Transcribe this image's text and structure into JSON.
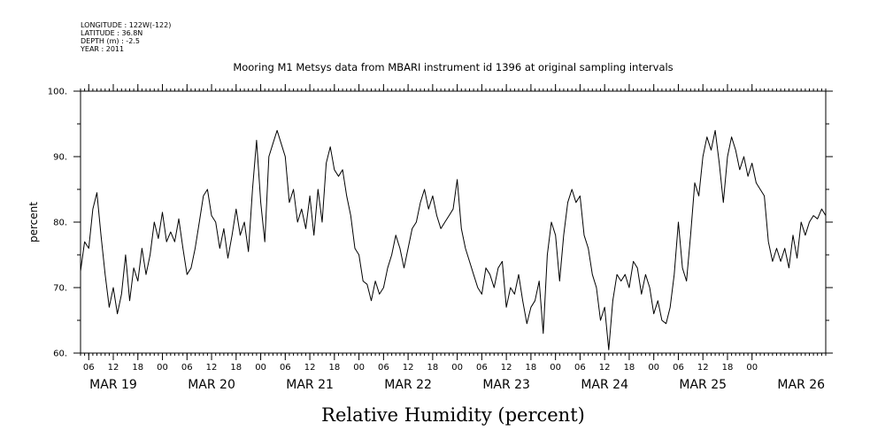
{
  "header": {
    "meta_lines": [
      "LONGITUDE : 122W(-122)",
      "LATITUDE : 36.8N",
      "DEPTH (m) : -2.5",
      "YEAR : 2011"
    ]
  },
  "chart_data": {
    "type": "line",
    "title": "Mooring M1 Metsys data from MBARI instrument id 1396 at original sampling intervals",
    "xlabel": "Relative Humidity (percent)",
    "ylabel": "percent",
    "ylim": [
      60,
      100
    ],
    "yticks": [
      "60.",
      "70.",
      "80.",
      "90.",
      "100."
    ],
    "xlim": [
      "2011-03-19T04:00",
      "2011-03-26T18:00"
    ],
    "hour_ticks": [
      "06",
      "12",
      "18",
      "00",
      "06",
      "12",
      "18",
      "00",
      "06",
      "12",
      "18",
      "00",
      "06",
      "12",
      "18",
      "00",
      "06",
      "12",
      "18",
      "00",
      "06",
      "12",
      "18",
      "00",
      "06",
      "12",
      "18",
      "00"
    ],
    "day_labels": [
      "MAR 19",
      "MAR 20",
      "MAR 21",
      "MAR 22",
      "MAR 23",
      "MAR 24",
      "MAR 25",
      "MAR 26"
    ],
    "grid": false,
    "line_color": "#000000",
    "series": [
      {
        "values": [
          [
            "2011-03-19T04:00",
            72.5
          ],
          [
            "2011-03-19T05:00",
            77
          ],
          [
            "2011-03-19T06:00",
            76
          ],
          [
            "2011-03-19T07:00",
            82
          ],
          [
            "2011-03-19T08:00",
            84.5
          ],
          [
            "2011-03-19T09:00",
            78
          ],
          [
            "2011-03-19T10:00",
            72
          ],
          [
            "2011-03-19T11:00",
            67
          ],
          [
            "2011-03-19T12:00",
            70
          ],
          [
            "2011-03-19T13:00",
            66
          ],
          [
            "2011-03-19T14:00",
            69
          ],
          [
            "2011-03-19T15:00",
            75
          ],
          [
            "2011-03-19T16:00",
            68
          ],
          [
            "2011-03-19T17:00",
            73
          ],
          [
            "2011-03-19T18:00",
            71
          ],
          [
            "2011-03-19T19:00",
            76
          ],
          [
            "2011-03-19T20:00",
            72
          ],
          [
            "2011-03-19T21:00",
            75
          ],
          [
            "2011-03-19T22:00",
            80
          ],
          [
            "2011-03-19T23:00",
            77.5
          ],
          [
            "2011-03-20T00:00",
            81.5
          ],
          [
            "2011-03-20T01:00",
            77
          ],
          [
            "2011-03-20T02:00",
            78.5
          ],
          [
            "2011-03-20T03:00",
            77
          ],
          [
            "2011-03-20T04:00",
            80.5
          ],
          [
            "2011-03-20T05:00",
            76
          ],
          [
            "2011-03-20T06:00",
            72
          ],
          [
            "2011-03-20T07:00",
            73
          ],
          [
            "2011-03-20T08:00",
            76
          ],
          [
            "2011-03-20T09:00",
            80
          ],
          [
            "2011-03-20T10:00",
            84
          ],
          [
            "2011-03-20T11:00",
            85
          ],
          [
            "2011-03-20T12:00",
            81
          ],
          [
            "2011-03-20T13:00",
            80
          ],
          [
            "2011-03-20T14:00",
            76
          ],
          [
            "2011-03-20T15:00",
            79
          ],
          [
            "2011-03-20T16:00",
            74.5
          ],
          [
            "2011-03-20T17:00",
            78
          ],
          [
            "2011-03-20T18:00",
            82
          ],
          [
            "2011-03-20T19:00",
            78
          ],
          [
            "2011-03-20T20:00",
            80
          ],
          [
            "2011-03-20T21:00",
            75.5
          ],
          [
            "2011-03-20T22:00",
            85
          ],
          [
            "2011-03-20T23:00",
            92.5
          ],
          [
            "2011-03-21T00:00",
            83
          ],
          [
            "2011-03-21T01:00",
            77
          ],
          [
            "2011-03-21T02:00",
            90
          ],
          [
            "2011-03-21T03:00",
            92
          ],
          [
            "2011-03-21T04:00",
            94
          ],
          [
            "2011-03-21T05:00",
            92
          ],
          [
            "2011-03-21T06:00",
            90
          ],
          [
            "2011-03-21T07:00",
            83
          ],
          [
            "2011-03-21T08:00",
            85
          ],
          [
            "2011-03-21T09:00",
            80
          ],
          [
            "2011-03-21T10:00",
            82
          ],
          [
            "2011-03-21T11:00",
            79
          ],
          [
            "2011-03-21T12:00",
            84
          ],
          [
            "2011-03-21T13:00",
            78
          ],
          [
            "2011-03-21T14:00",
            85
          ],
          [
            "2011-03-21T15:00",
            80
          ],
          [
            "2011-03-21T16:00",
            89
          ],
          [
            "2011-03-21T17:00",
            91.5
          ],
          [
            "2011-03-21T18:00",
            88
          ],
          [
            "2011-03-21T19:00",
            87
          ],
          [
            "2011-03-21T20:00",
            88
          ],
          [
            "2011-03-21T21:00",
            84
          ],
          [
            "2011-03-21T22:00",
            81
          ],
          [
            "2011-03-21T23:00",
            76
          ],
          [
            "2011-03-22T00:00",
            75
          ],
          [
            "2011-03-22T01:00",
            71
          ],
          [
            "2011-03-22T02:00",
            70.5
          ],
          [
            "2011-03-22T03:00",
            68
          ],
          [
            "2011-03-22T04:00",
            71
          ],
          [
            "2011-03-22T05:00",
            69
          ],
          [
            "2011-03-22T06:00",
            70
          ],
          [
            "2011-03-22T07:00",
            73
          ],
          [
            "2011-03-22T08:00",
            75
          ],
          [
            "2011-03-22T09:00",
            78
          ],
          [
            "2011-03-22T10:00",
            76
          ],
          [
            "2011-03-22T11:00",
            73
          ],
          [
            "2011-03-22T12:00",
            76
          ],
          [
            "2011-03-22T13:00",
            79
          ],
          [
            "2011-03-22T14:00",
            80
          ],
          [
            "2011-03-22T15:00",
            83
          ],
          [
            "2011-03-22T16:00",
            85
          ],
          [
            "2011-03-22T17:00",
            82
          ],
          [
            "2011-03-22T18:00",
            84
          ],
          [
            "2011-03-22T19:00",
            81
          ],
          [
            "2011-03-22T20:00",
            79
          ],
          [
            "2011-03-22T21:00",
            80
          ],
          [
            "2011-03-22T22:00",
            81
          ],
          [
            "2011-03-22T23:00",
            82
          ],
          [
            "2011-03-23T00:00",
            86.5
          ],
          [
            "2011-03-23T01:00",
            79
          ],
          [
            "2011-03-23T02:00",
            76
          ],
          [
            "2011-03-23T03:00",
            74
          ],
          [
            "2011-03-23T04:00",
            72
          ],
          [
            "2011-03-23T05:00",
            70
          ],
          [
            "2011-03-23T06:00",
            69
          ],
          [
            "2011-03-23T07:00",
            73
          ],
          [
            "2011-03-23T08:00",
            72
          ],
          [
            "2011-03-23T09:00",
            70
          ],
          [
            "2011-03-23T10:00",
            73
          ],
          [
            "2011-03-23T11:00",
            74
          ],
          [
            "2011-03-23T12:00",
            67
          ],
          [
            "2011-03-23T13:00",
            70
          ],
          [
            "2011-03-23T14:00",
            69
          ],
          [
            "2011-03-23T15:00",
            72
          ],
          [
            "2011-03-23T16:00",
            68
          ],
          [
            "2011-03-23T17:00",
            64.5
          ],
          [
            "2011-03-23T18:00",
            67
          ],
          [
            "2011-03-23T19:00",
            68
          ],
          [
            "2011-03-23T20:00",
            71
          ],
          [
            "2011-03-23T21:00",
            63
          ],
          [
            "2011-03-23T22:00",
            75
          ],
          [
            "2011-03-23T23:00",
            80
          ],
          [
            "2011-03-24T00:00",
            78
          ],
          [
            "2011-03-24T01:00",
            71
          ],
          [
            "2011-03-24T02:00",
            78
          ],
          [
            "2011-03-24T03:00",
            83
          ],
          [
            "2011-03-24T04:00",
            85
          ],
          [
            "2011-03-24T05:00",
            83
          ],
          [
            "2011-03-24T06:00",
            84
          ],
          [
            "2011-03-24T07:00",
            78
          ],
          [
            "2011-03-24T08:00",
            76
          ],
          [
            "2011-03-24T09:00",
            72
          ],
          [
            "2011-03-24T10:00",
            70
          ],
          [
            "2011-03-24T11:00",
            65
          ],
          [
            "2011-03-24T12:00",
            67
          ],
          [
            "2011-03-24T13:00",
            60.5
          ],
          [
            "2011-03-24T14:00",
            68
          ],
          [
            "2011-03-24T15:00",
            72
          ],
          [
            "2011-03-24T16:00",
            71
          ],
          [
            "2011-03-24T17:00",
            72
          ],
          [
            "2011-03-24T18:00",
            70
          ],
          [
            "2011-03-24T19:00",
            74
          ],
          [
            "2011-03-24T20:00",
            73
          ],
          [
            "2011-03-24T21:00",
            69
          ],
          [
            "2011-03-24T22:00",
            72
          ],
          [
            "2011-03-24T23:00",
            70
          ],
          [
            "2011-03-25T00:00",
            66
          ],
          [
            "2011-03-25T01:00",
            68
          ],
          [
            "2011-03-25T02:00",
            65
          ],
          [
            "2011-03-25T03:00",
            64.5
          ],
          [
            "2011-03-25T04:00",
            67
          ],
          [
            "2011-03-25T05:00",
            72
          ],
          [
            "2011-03-25T06:00",
            80
          ],
          [
            "2011-03-25T07:00",
            73
          ],
          [
            "2011-03-25T08:00",
            71
          ],
          [
            "2011-03-25T09:00",
            78
          ],
          [
            "2011-03-25T10:00",
            86
          ],
          [
            "2011-03-25T11:00",
            84
          ],
          [
            "2011-03-25T12:00",
            90
          ],
          [
            "2011-03-25T13:00",
            93
          ],
          [
            "2011-03-25T14:00",
            91
          ],
          [
            "2011-03-25T15:00",
            94
          ],
          [
            "2011-03-25T16:00",
            89
          ],
          [
            "2011-03-25T17:00",
            83
          ],
          [
            "2011-03-25T18:00",
            90
          ],
          [
            "2011-03-25T19:00",
            93
          ],
          [
            "2011-03-25T20:00",
            91
          ],
          [
            "2011-03-25T21:00",
            88
          ],
          [
            "2011-03-25T22:00",
            90
          ],
          [
            "2011-03-25T23:00",
            87
          ],
          [
            "2011-03-26T00:00",
            89
          ],
          [
            "2011-03-26T01:00",
            86
          ],
          [
            "2011-03-26T02:00",
            85
          ],
          [
            "2011-03-26T03:00",
            84
          ],
          [
            "2011-03-26T04:00",
            77
          ],
          [
            "2011-03-26T05:00",
            74
          ],
          [
            "2011-03-26T06:00",
            76
          ],
          [
            "2011-03-26T07:00",
            74
          ],
          [
            "2011-03-26T08:00",
            76
          ],
          [
            "2011-03-26T09:00",
            73
          ],
          [
            "2011-03-26T10:00",
            78
          ],
          [
            "2011-03-26T11:00",
            74.5
          ],
          [
            "2011-03-26T12:00",
            80
          ],
          [
            "2011-03-26T13:00",
            78
          ],
          [
            "2011-03-26T14:00",
            80
          ],
          [
            "2011-03-26T15:00",
            81
          ],
          [
            "2011-03-26T16:00",
            80.5
          ],
          [
            "2011-03-26T17:00",
            82
          ],
          [
            "2011-03-26T18:00",
            81
          ]
        ]
      }
    ]
  }
}
